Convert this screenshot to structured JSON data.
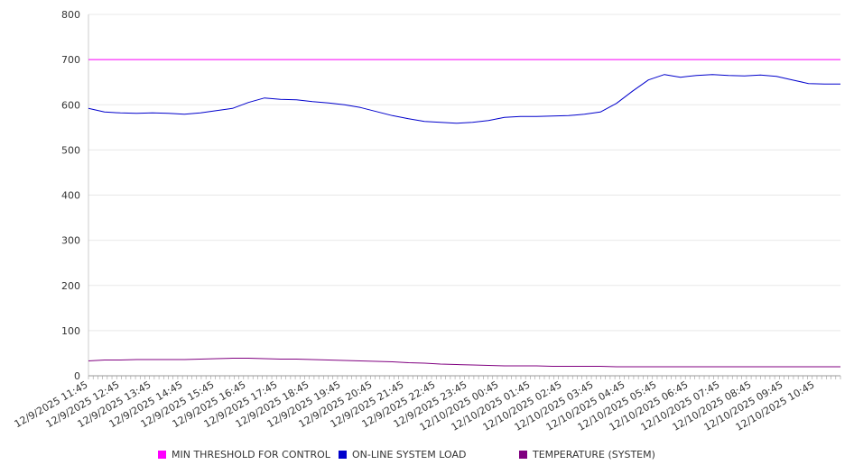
{
  "chart_data": {
    "type": "line",
    "title": "",
    "xlabel": "",
    "ylabel": "",
    "ylim": [
      0,
      800
    ],
    "y_ticks": [
      0,
      100,
      200,
      300,
      400,
      500,
      600,
      700,
      800
    ],
    "grid": true,
    "legend_position": "bottom",
    "x_tick_labels": [
      "12/9/2025 11:45",
      "12/9/2025 12:45",
      "12/9/2025 13:45",
      "12/9/2025 14:45",
      "12/9/2025 15:45",
      "12/9/2025 16:45",
      "12/9/2025 17:45",
      "12/9/2025 18:45",
      "12/9/2025 19:45",
      "12/9/2025 20:45",
      "12/9/2025 21:45",
      "12/9/2025 22:45",
      "12/9/2025 23:45",
      "12/10/2025 00:45",
      "12/10/2025 01:45",
      "12/10/2025 02:45",
      "12/10/2025 03:45",
      "12/10/2025 04:45",
      "12/10/2025 05:45",
      "12/10/2025 06:45",
      "12/10/2025 07:45",
      "12/10/2025 08:45",
      "12/10/2025 09:45",
      "12/10/2025 10:45"
    ],
    "x": [
      "12/9/2025 11:45",
      "12/9/2025 12:15",
      "12/9/2025 12:45",
      "12/9/2025 13:15",
      "12/9/2025 13:45",
      "12/9/2025 14:15",
      "12/9/2025 14:45",
      "12/9/2025 15:15",
      "12/9/2025 15:45",
      "12/9/2025 16:15",
      "12/9/2025 16:45",
      "12/9/2025 17:15",
      "12/9/2025 17:45",
      "12/9/2025 18:15",
      "12/9/2025 18:45",
      "12/9/2025 19:15",
      "12/9/2025 19:45",
      "12/9/2025 20:15",
      "12/9/2025 20:45",
      "12/9/2025 21:15",
      "12/9/2025 21:45",
      "12/9/2025 22:15",
      "12/9/2025 22:45",
      "12/9/2025 23:15",
      "12/9/2025 23:45",
      "12/10/2025 00:15",
      "12/10/2025 00:45",
      "12/10/2025 01:15",
      "12/10/2025 01:45",
      "12/10/2025 02:15",
      "12/10/2025 02:45",
      "12/10/2025 03:15",
      "12/10/2025 03:45",
      "12/10/2025 04:15",
      "12/10/2025 04:45",
      "12/10/2025 05:15",
      "12/10/2025 05:45",
      "12/10/2025 06:15",
      "12/10/2025 06:45",
      "12/10/2025 07:15",
      "12/10/2025 07:45",
      "12/10/2025 08:15",
      "12/10/2025 08:45",
      "12/10/2025 09:15",
      "12/10/2025 09:45",
      "12/10/2025 10:15",
      "12/10/2025 10:45",
      "12/10/2025 11:15"
    ],
    "series": [
      {
        "name": "MIN THRESHOLD FOR CONTROL",
        "color": "#ff00ff",
        "values": [
          700,
          700,
          700,
          700,
          700,
          700,
          700,
          700,
          700,
          700,
          700,
          700,
          700,
          700,
          700,
          700,
          700,
          700,
          700,
          700,
          700,
          700,
          700,
          700,
          700,
          700,
          700,
          700,
          700,
          700,
          700,
          700,
          700,
          700,
          700,
          700,
          700,
          700,
          700,
          700,
          700,
          700,
          700,
          700,
          700,
          700,
          700,
          700
        ]
      },
      {
        "name": "ON-LINE SYSTEM LOAD",
        "color": "#0000cc",
        "values": [
          592,
          584,
          582,
          581,
          582,
          581,
          579,
          582,
          587,
          592,
          605,
          615,
          612,
          611,
          607,
          604,
          600,
          594,
          585,
          576,
          569,
          563,
          561,
          559,
          561,
          565,
          572,
          574,
          574,
          575,
          576,
          579,
          584,
          603,
          630,
          655,
          667,
          661,
          665,
          667,
          665,
          664,
          666,
          663,
          655,
          647,
          646,
          646
        ]
      },
      {
        "name": "TEMPERATURE (SYSTEM)",
        "color": "#800080",
        "values": [
          33,
          35,
          35,
          36,
          36,
          36,
          36,
          37,
          38,
          39,
          39,
          38,
          37,
          37,
          36,
          35,
          34,
          33,
          32,
          31,
          29,
          28,
          26,
          25,
          24,
          23,
          22,
          22,
          22,
          21,
          21,
          21,
          21,
          20,
          20,
          20,
          20,
          20,
          20,
          20,
          20,
          20,
          20,
          20,
          20,
          20,
          20,
          20
        ]
      }
    ]
  }
}
